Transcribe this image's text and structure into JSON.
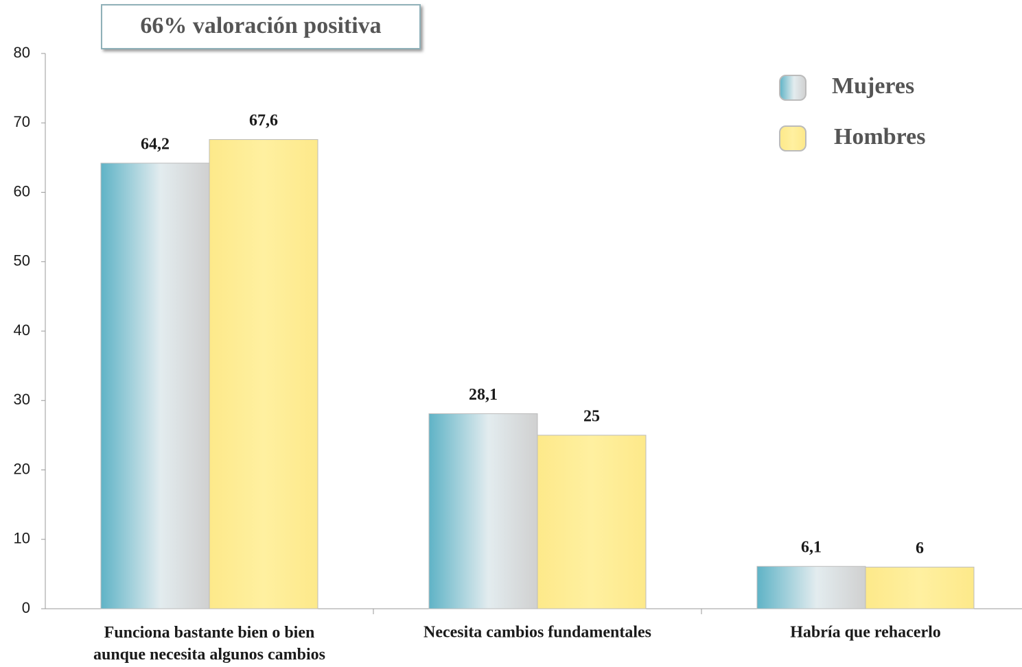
{
  "chart_data": {
    "type": "bar",
    "annotation": "66%  valoración positiva",
    "categories": [
      "Funciona  bastante bien o bien\naunque necesita algunos cambios",
      "Necesita cambios fundamentales",
      "Habría que rehacerlo"
    ],
    "series": [
      {
        "name": "Mujeres",
        "color": "#5fb3c6",
        "values": [
          64.2,
          28.1,
          6.1
        ],
        "value_labels": [
          "64,2",
          "28,1",
          "6,1"
        ]
      },
      {
        "name": "Hombres",
        "color": "#fde98a",
        "values": [
          67.6,
          25,
          6
        ],
        "value_labels": [
          "67,6",
          "25",
          "6"
        ]
      }
    ],
    "ylim": [
      0,
      80
    ],
    "yticks": [
      0,
      10,
      20,
      30,
      40,
      50,
      60,
      70,
      80
    ],
    "grid": false
  }
}
